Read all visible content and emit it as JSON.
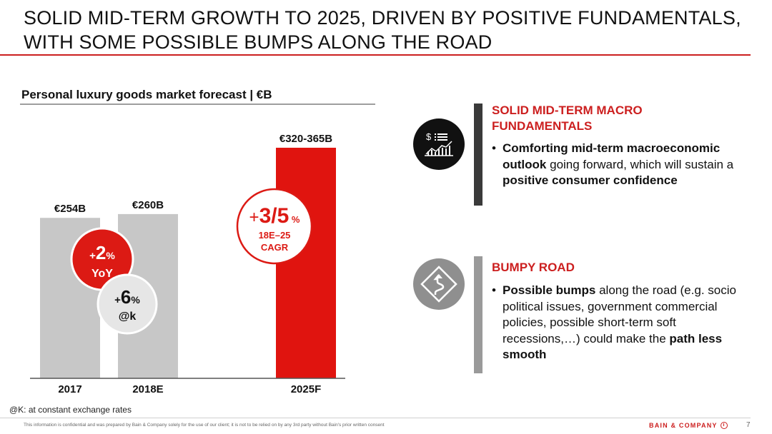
{
  "title": {
    "line1": "SOLID MID-TERM GROWTH TO 2025, DRIVEN BY POSITIVE FUNDAMENTALS,",
    "line2": "WITH SOME POSSIBLE BUMPS ALONG THE ROAD"
  },
  "chart_data": {
    "type": "bar",
    "title": "Personal luxury goods market forecast | €B",
    "categories": [
      "2017",
      "2018E",
      "2025F"
    ],
    "values": [
      254,
      260,
      342.5
    ],
    "value_labels": [
      "€254B",
      "€260B",
      "€320-365B"
    ],
    "range_2025F": [
      320,
      365
    ],
    "colors": [
      "#c7c7c7",
      "#c7c7c7",
      "#e0140f"
    ],
    "badges": [
      {
        "sign": "+",
        "value": "2",
        "unit": "%",
        "sub": "YoY",
        "style": "red"
      },
      {
        "sign": "+",
        "value": "6",
        "unit": "%",
        "sub": "@k",
        "style": "grey"
      },
      {
        "sign": "+",
        "value": "3/5",
        "unit": "%",
        "sub1": "18E–25",
        "sub2": "CAGR",
        "style": "outline"
      }
    ]
  },
  "footnote": "@K: at constant exchange rates",
  "disclaimer": "This information is confidential and was prepared by Bain & Company solely for the use of our client; it is not to be relied on by any 3rd party without Bain's prior written consent",
  "brand": "BAIN & COMPANY",
  "page_number": "7",
  "sections": [
    {
      "icon": "financial-chart-icon",
      "heading_line1": "SOLID MID-TERM MACRO",
      "heading_line2": "FUNDAMENTALS",
      "bullet": "•",
      "parts": {
        "b1": "Comforting mid-term macroeconomic outlook",
        "t1": " going forward, which will sustain a ",
        "b2": "positive consumer confidence"
      },
      "accent": "#3a3a3a"
    },
    {
      "icon": "winding-road-sign-icon",
      "heading_line1": "BUMPY ROAD",
      "bullet": "•",
      "parts": {
        "b1": "Possible bumps",
        "t1": " along the road (e.g. socio political issues, government commercial policies, possible short-term soft recessions,…) could make the ",
        "b2": "path less smooth"
      },
      "accent": "#9a9a9a"
    }
  ]
}
